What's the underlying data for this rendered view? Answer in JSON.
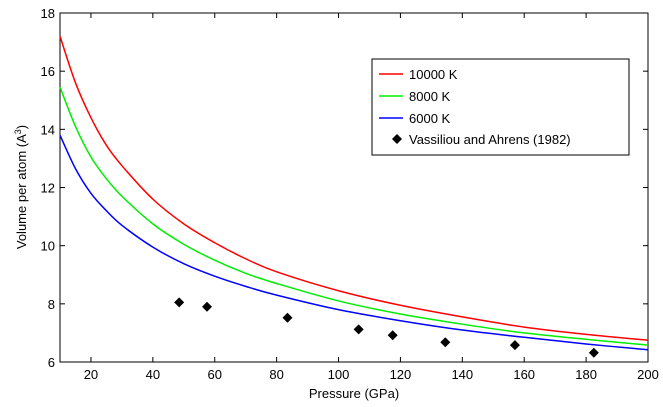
{
  "chart_data": {
    "type": "line",
    "xlabel": "Pressure (GPa)",
    "ylabel_main": "Volume per atom (A",
    "ylabel_sup": "3",
    "ylabel_end": ")",
    "xlim": [
      10,
      200
    ],
    "ylim": [
      6,
      18
    ],
    "xticks": [
      20,
      40,
      60,
      80,
      100,
      120,
      140,
      160,
      180,
      200
    ],
    "yticks": [
      6,
      8,
      10,
      12,
      14,
      16,
      18
    ],
    "grid": false,
    "legend_position": "top-right",
    "series": [
      {
        "name": "10000 K",
        "kind": "line",
        "color": "#ff0000",
        "x": [
          10,
          15,
          20,
          25,
          30,
          40,
          50,
          60,
          70,
          80,
          100,
          120,
          140,
          160,
          180,
          200
        ],
        "y": [
          17.2,
          15.6,
          14.4,
          13.45,
          12.75,
          11.6,
          10.75,
          10.1,
          9.55,
          9.1,
          8.45,
          7.95,
          7.55,
          7.2,
          6.95,
          6.75
        ]
      },
      {
        "name": "8000 K",
        "kind": "line",
        "color": "#00ee00",
        "x": [
          10,
          15,
          20,
          25,
          30,
          40,
          50,
          60,
          70,
          80,
          100,
          120,
          140,
          160,
          180,
          200
        ],
        "y": [
          15.45,
          14.1,
          13.05,
          12.3,
          11.7,
          10.75,
          10.05,
          9.5,
          9.05,
          8.7,
          8.1,
          7.65,
          7.3,
          7.0,
          6.78,
          6.58
        ]
      },
      {
        "name": "6000 K",
        "kind": "line",
        "color": "#0000ff",
        "x": [
          10,
          15,
          20,
          25,
          30,
          40,
          50,
          60,
          70,
          80,
          100,
          120,
          140,
          160,
          180,
          200
        ],
        "y": [
          13.8,
          12.65,
          11.8,
          11.2,
          10.7,
          9.95,
          9.38,
          8.95,
          8.6,
          8.3,
          7.8,
          7.42,
          7.1,
          6.85,
          6.62,
          6.42
        ]
      },
      {
        "name": "Vassiliou and Ahrens (1982)",
        "kind": "scatter",
        "marker": "diamond",
        "color": "#000000",
        "x": [
          48.5,
          57.5,
          83.5,
          106.5,
          117.5,
          134.5,
          157,
          182.5
        ],
        "y": [
          8.05,
          7.9,
          7.52,
          7.12,
          6.92,
          6.68,
          6.58,
          6.32
        ]
      }
    ]
  }
}
